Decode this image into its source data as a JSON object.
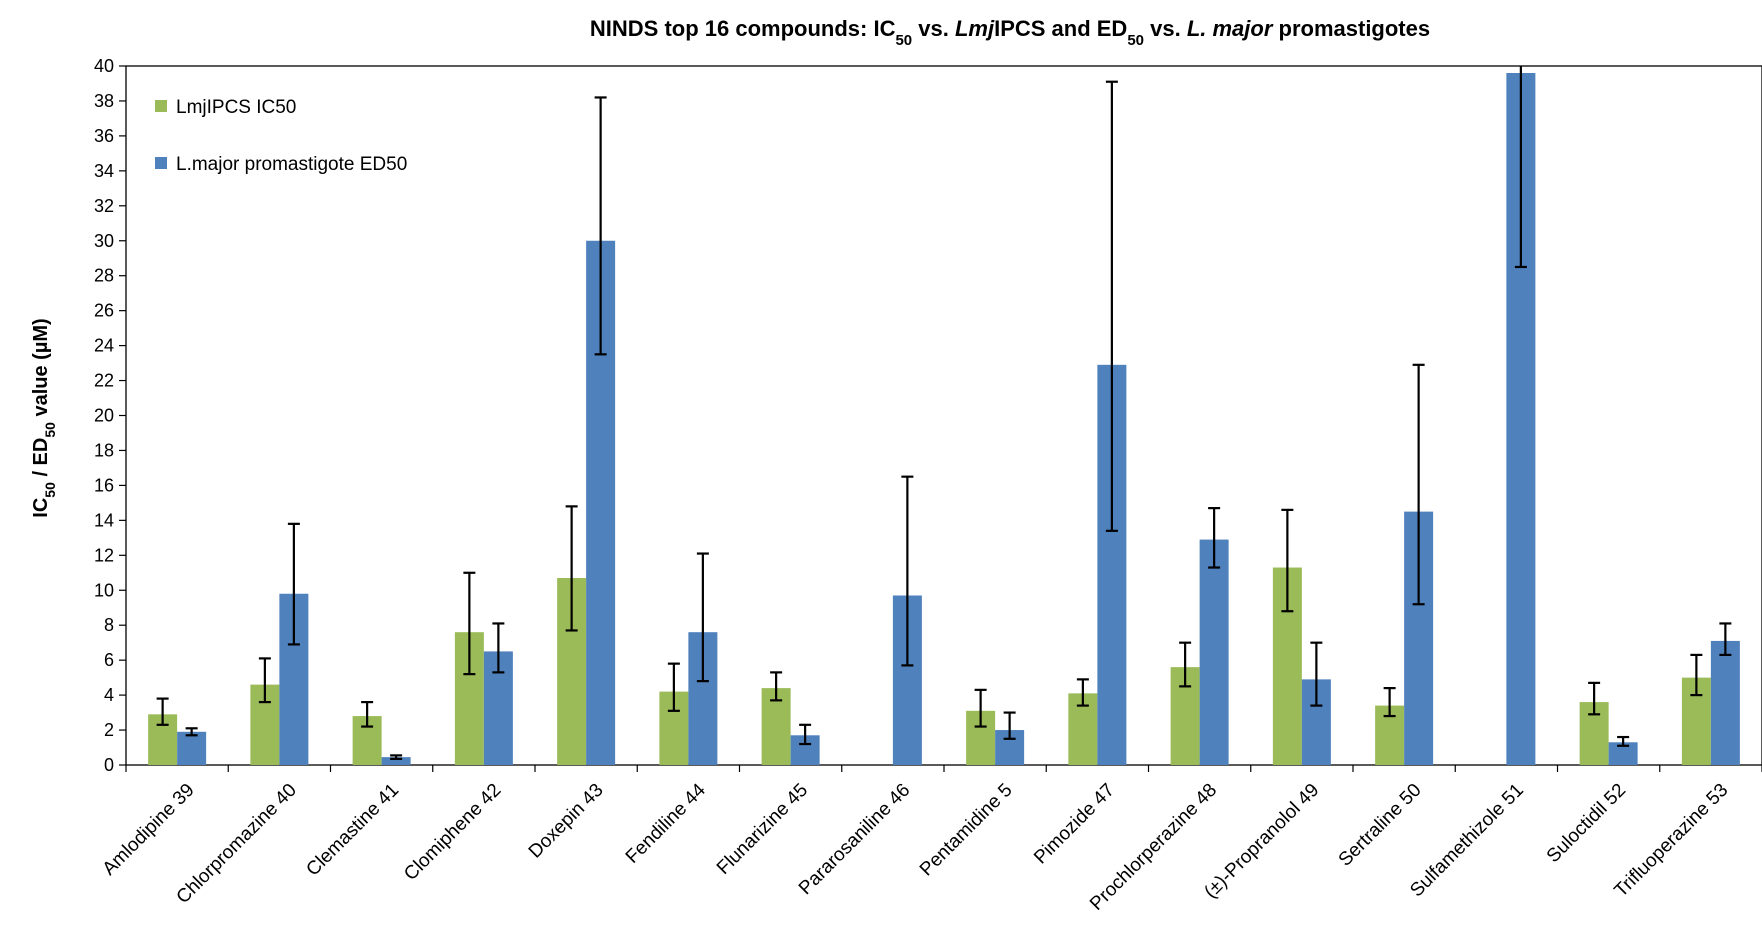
{
  "chart_data": {
    "type": "bar",
    "title": {
      "parts": [
        {
          "text": "NINDS top 16 compounds: IC",
          "style": "normal"
        },
        {
          "text": "50",
          "style": "sub"
        },
        {
          "text": " vs. ",
          "style": "normal"
        },
        {
          "text": "Lmj",
          "style": "italic"
        },
        {
          "text": "IPCS and ED",
          "style": "normal"
        },
        {
          "text": "50",
          "style": "sub"
        },
        {
          "text": " vs. ",
          "style": "normal"
        },
        {
          "text": "L. major",
          "style": "italic"
        },
        {
          "text": " promastigotes",
          "style": "normal"
        }
      ]
    },
    "ylabel": {
      "parts": [
        {
          "text": "IC",
          "style": "normal"
        },
        {
          "text": "50",
          "style": "sub"
        },
        {
          "text": " / ED",
          "style": "normal"
        },
        {
          "text": "50",
          "style": "sub"
        },
        {
          "text": " value (µM)",
          "style": "normal"
        }
      ]
    },
    "ylim": [
      0,
      40
    ],
    "yticks": [
      0,
      2,
      4,
      6,
      8,
      10,
      12,
      14,
      16,
      18,
      20,
      22,
      24,
      26,
      28,
      30,
      32,
      34,
      36,
      38,
      40
    ],
    "legend_position": "top-left",
    "categories": [
      "Amlodipine 39",
      "Chlorpromazine 40",
      "Clemastine 41",
      "Clomiphene 42",
      "Doxepin 43",
      "Fendiline 44",
      "Flunarizine 45",
      "Pararosaniline 46",
      "Pentamidine 5",
      "Pimozide 47",
      "Prochlorperazine 48",
      "(±)-Propranolol 49",
      "Sertraline 50",
      "Sulfamethizole 51",
      "Suloctidil 52",
      "Trifluoperazine 53"
    ],
    "series": [
      {
        "name": "LmjIPCS IC50",
        "color": "#9bbb59",
        "values": [
          2.9,
          4.6,
          2.8,
          7.6,
          10.7,
          4.2,
          4.4,
          null,
          3.1,
          4.1,
          5.6,
          11.3,
          3.4,
          null,
          3.6,
          5.0
        ],
        "err_low": [
          2.3,
          3.6,
          2.2,
          5.2,
          7.7,
          3.1,
          3.7,
          null,
          2.2,
          3.4,
          4.5,
          8.8,
          2.8,
          null,
          2.9,
          4.0
        ],
        "err_high": [
          3.8,
          6.1,
          3.6,
          11.0,
          14.8,
          5.8,
          5.3,
          null,
          4.3,
          4.9,
          7.0,
          14.6,
          4.4,
          null,
          4.7,
          6.3
        ]
      },
      {
        "name": "L.major promastigote ED50",
        "color": "#4f81bd",
        "values": [
          1.9,
          9.8,
          0.45,
          6.5,
          30.0,
          7.6,
          1.7,
          9.7,
          2.0,
          22.9,
          12.9,
          4.9,
          14.5,
          39.6,
          1.3,
          7.1
        ],
        "err_low": [
          1.7,
          6.9,
          0.35,
          5.3,
          23.5,
          4.8,
          1.2,
          5.7,
          1.5,
          13.4,
          11.3,
          3.4,
          9.2,
          28.5,
          1.1,
          6.3
        ],
        "err_high": [
          2.1,
          13.8,
          0.55,
          8.1,
          38.2,
          12.1,
          2.3,
          16.5,
          3.0,
          39.1,
          14.7,
          7.0,
          22.9,
          40.0,
          1.6,
          8.1
        ]
      }
    ]
  }
}
